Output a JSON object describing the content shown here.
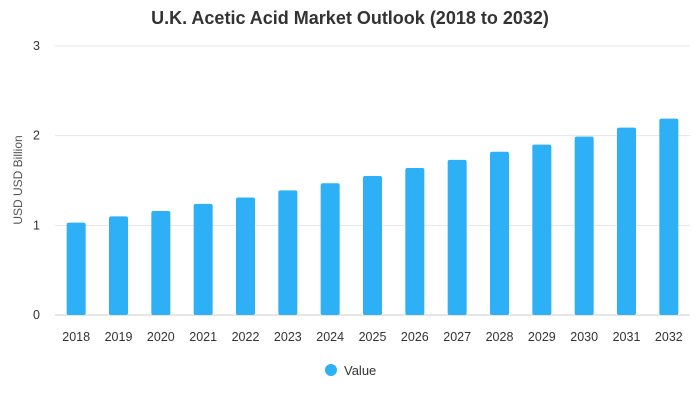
{
  "chart_data": {
    "type": "bar",
    "title": "U.K. Acetic Acid Market Outlook (2018 to 2032)",
    "xlabel": "",
    "ylabel": "USD USD Billion",
    "categories": [
      "2018",
      "2019",
      "2020",
      "2021",
      "2022",
      "2023",
      "2024",
      "2025",
      "2026",
      "2027",
      "2028",
      "2029",
      "2030",
      "2031",
      "2032"
    ],
    "series": [
      {
        "name": "Value",
        "color": "#2db0f5",
        "values": [
          1.03,
          1.1,
          1.16,
          1.24,
          1.31,
          1.39,
          1.47,
          1.55,
          1.64,
          1.73,
          1.82,
          1.9,
          1.99,
          2.09,
          2.19
        ]
      }
    ],
    "ylim": [
      0,
      3
    ],
    "yticks": [
      "0",
      "1",
      "2",
      "3"
    ],
    "grid": true,
    "legend_position": "bottom-center",
    "colors": {
      "bar": "#2db0f5",
      "grid": "#e6e6e6",
      "axis": "#cccccc",
      "text": "#333333"
    }
  }
}
